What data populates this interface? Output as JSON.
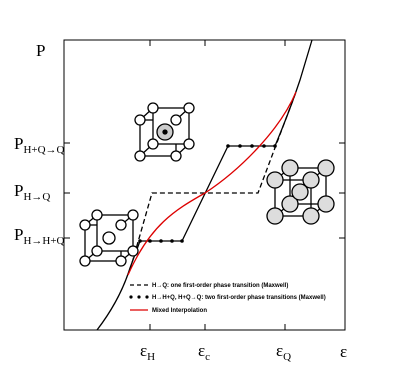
{
  "figure": {
    "y_axis": {
      "label": "P"
    },
    "x_axis": {
      "label": "ε"
    },
    "y_ticks": [
      {
        "main": "P",
        "sub": "H+Q→Q"
      },
      {
        "main": "P",
        "sub": "H→Q"
      },
      {
        "main": "P",
        "sub": "H→H+Q"
      }
    ],
    "x_ticks": [
      {
        "main": "ε",
        "sub": "H"
      },
      {
        "main": "ε",
        "sub": "c"
      },
      {
        "main": "ε",
        "sub": "Q"
      }
    ],
    "legend": [
      "H→Q: one first-order phase transition (Maxwell)",
      "H→H+Q, H+Q→Q: two first-order phase transitions (Maxwell)",
      "Mixed Interpolation"
    ]
  }
}
